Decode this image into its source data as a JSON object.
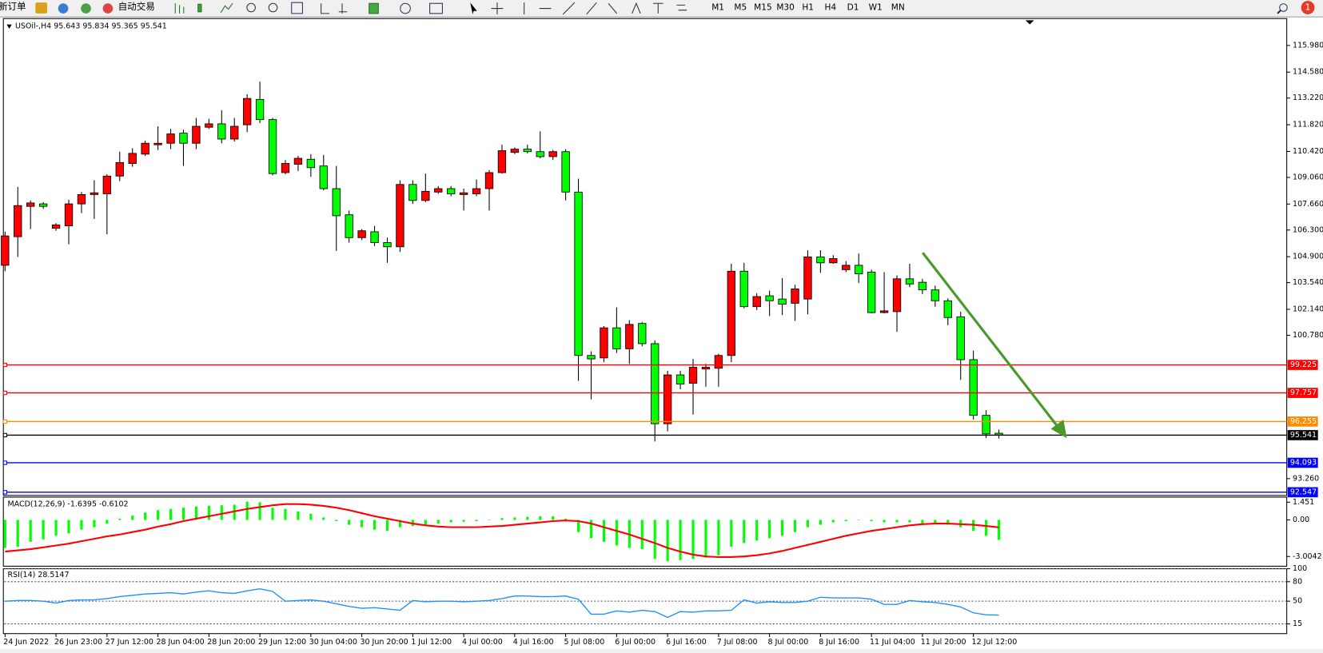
{
  "toolbar": {
    "new_order": "新订单",
    "auto_trading": "自动交易",
    "timeframes": [
      "M1",
      "M5",
      "M15",
      "M30",
      "H1",
      "H4",
      "D1",
      "W1",
      "MN"
    ],
    "alerts": 1
  },
  "chart_data": [
    {
      "type": "candlestick",
      "title": "USOil-,H4",
      "categories": [
        "24 Jun 2022",
        null,
        null,
        null,
        "26 Jun 23:00",
        null,
        null,
        null,
        "27 Jun 12:00",
        null,
        null,
        null,
        "28 Jun 04:00",
        null,
        null,
        null,
        "28 Jun 20:00",
        null,
        null,
        null,
        "29 Jun 12:00",
        null,
        null,
        null,
        "30 Jun 04:00",
        null,
        null,
        null,
        "30 Jun 20:00",
        null,
        null,
        null,
        "1 Jul 12:00",
        null,
        null,
        null,
        "4 Jul 00:00",
        null,
        null,
        null,
        "4 Jul 16:00",
        null,
        null,
        null,
        "5 Jul 08:00",
        null,
        null,
        null,
        "6 Jul 00:00",
        null,
        null,
        null,
        "6 Jul 16:00",
        null,
        null,
        null,
        "7 Jul 08:00",
        null,
        null,
        null,
        "8 Jul 00:00",
        null,
        null,
        null,
        "8 Jul 16:00",
        null,
        null,
        null,
        "11 Jul 04:00",
        null,
        null,
        null,
        "11 Jul 20:00",
        null,
        null,
        null,
        "12 Jul 12:00",
        null,
        null
      ],
      "open": [
        104.45,
        105.95,
        107.54,
        107.67,
        106.39,
        106.52,
        107.67,
        108.16,
        108.2,
        109.13,
        109.79,
        110.28,
        110.77,
        110.85,
        111.38,
        110.85,
        111.69,
        111.87,
        111.07,
        111.82,
        113.15,
        112.09,
        109.31,
        109.75,
        110.01,
        109.66,
        108.47,
        107.1,
        105.9,
        106.21,
        105.64,
        105.42,
        108.69,
        107.85,
        108.29,
        108.47,
        108.16,
        108.2,
        108.47,
        109.31,
        110.37,
        110.54,
        110.41,
        110.15,
        110.41,
        108.29,
        99.72,
        99.59,
        101.17,
        100.07,
        101.4,
        100.34,
        96.14,
        98.7,
        98.26,
        99.01,
        99.05,
        99.72,
        104.14,
        102.28,
        102.85,
        102.68,
        102.46,
        102.68,
        104.89,
        104.58,
        104.22,
        104.45,
        104.09,
        101.97,
        102.02,
        103.74,
        103.56,
        103.16,
        102.59,
        101.75,
        99.5,
        96.58,
        95.643
      ],
      "high": [
        106.21,
        108.56,
        107.85,
        107.76,
        106.66,
        107.89,
        108.29,
        108.91,
        109.22,
        110.41,
        110.59,
        110.99,
        111.74,
        111.6,
        111.56,
        112.18,
        112.13,
        112.58,
        112.18,
        113.42,
        114.08,
        112.18,
        109.97,
        110.19,
        110.28,
        110.24,
        109.66,
        107.32,
        106.35,
        106.52,
        105.9,
        108.91,
        108.91,
        109.26,
        108.6,
        108.6,
        108.47,
        108.95,
        109.44,
        110.77,
        110.63,
        110.77,
        111.47,
        110.5,
        110.54,
        108.99,
        99.94,
        101.26,
        102.24,
        101.57,
        101.48,
        100.51,
        98.92,
        98.92,
        99.54,
        99.28,
        99.81,
        104.53,
        104.58,
        102.99,
        103.12,
        103.78,
        103.43,
        105.24,
        105.24,
        104.98,
        104.67,
        105.07,
        104.22,
        104.09,
        103.92,
        104.53,
        103.74,
        103.38,
        102.72,
        102.02,
        99.98,
        96.85,
        95.834
      ],
      "low": [
        104.14,
        104.89,
        106.35,
        107.41,
        106.26,
        105.55,
        107.19,
        106.88,
        106.08,
        108.86,
        109.62,
        110.19,
        110.5,
        110.54,
        109.66,
        110.54,
        111.6,
        110.85,
        110.94,
        111.43,
        111.91,
        109.17,
        109.22,
        109.4,
        109.09,
        108.38,
        105.2,
        105.64,
        105.77,
        105.46,
        104.58,
        105.15,
        107.67,
        107.76,
        108.2,
        108.07,
        107.32,
        108.07,
        107.32,
        109.26,
        110.28,
        110.32,
        110.06,
        109.97,
        107.85,
        98.39,
        97.42,
        99.37,
        99.85,
        99.28,
        100.2,
        95.21,
        95.74,
        97.95,
        96.62,
        98.08,
        98.08,
        99.37,
        102.19,
        102.1,
        101.79,
        101.84,
        101.53,
        101.88,
        104.05,
        104.53,
        104.09,
        103.52,
        101.93,
        101.93,
        100.96,
        103.3,
        102.94,
        102.28,
        101.31,
        98.44,
        96.36,
        95.39,
        95.365
      ],
      "close": [
        105.99,
        107.58,
        107.72,
        107.54,
        106.57,
        107.67,
        108.16,
        108.25,
        109.13,
        109.84,
        110.32,
        110.85,
        110.85,
        111.34,
        110.85,
        111.74,
        111.87,
        111.07,
        111.74,
        113.2,
        112.09,
        109.26,
        109.79,
        110.06,
        109.57,
        108.47,
        107.05,
        105.9,
        106.26,
        105.64,
        105.42,
        108.69,
        107.85,
        108.33,
        108.47,
        108.2,
        108.25,
        108.47,
        109.31,
        110.46,
        110.54,
        110.41,
        110.15,
        110.41,
        108.29,
        99.72,
        99.54,
        101.17,
        100.07,
        101.35,
        100.34,
        96.14,
        98.7,
        98.22,
        99.1,
        99.1,
        99.72,
        104.14,
        102.28,
        102.81,
        102.59,
        102.41,
        103.21,
        104.89,
        104.58,
        104.8,
        104.45,
        104.0,
        101.97,
        102.06,
        103.74,
        103.47,
        103.16,
        102.59,
        101.71,
        99.5,
        96.58,
        95.61,
        95.541
      ],
      "up_color": "#ff0000",
      "down_color": "#00ff00",
      "ylim": [
        92.38,
        117.39
      ],
      "yticks": [
        {
          "value": 115.98,
          "label": "115.980"
        },
        {
          "value": 114.58,
          "label": "114.580"
        },
        {
          "value": 113.22,
          "label": "113.220"
        },
        {
          "value": 111.82,
          "label": "111.820"
        },
        {
          "value": 110.42,
          "label": "110.420"
        },
        {
          "value": 109.06,
          "label": "109.060"
        },
        {
          "value": 107.66,
          "label": "107.660"
        },
        {
          "value": 106.3,
          "label": "106.300"
        },
        {
          "value": 104.9,
          "label": "104.900"
        },
        {
          "value": 103.54,
          "label": "103.540"
        },
        {
          "value": 102.14,
          "label": "102.140"
        },
        {
          "value": 100.78,
          "label": "100.780"
        },
        {
          "value": 93.26,
          "label": "93.260"
        }
      ],
      "levels": [
        {
          "value": 99.225,
          "color": "#ff0000"
        },
        {
          "value": 97.757,
          "color": "#ff0000"
        },
        {
          "value": 96.255,
          "color": "#ff8c00"
        },
        {
          "value": 94.093,
          "color": "#0000ff"
        },
        {
          "value": 92.547,
          "color": "#0000ff"
        }
      ],
      "bid_color": "#000000"
    },
    {
      "type": "macd",
      "title": "MACD(12,26,9)",
      "series": [
        {
          "kind": "bar",
          "color": "#00ff00",
          "values": [
            -2.3,
            -2.2,
            -1.8,
            -1.6,
            -1.3,
            -1.1,
            -0.8,
            -0.6,
            -0.3,
            0.1,
            0.35,
            0.6,
            0.8,
            0.9,
            1.0,
            1.1,
            1.15,
            1.2,
            1.25,
            1.5,
            1.45,
            1.0,
            0.9,
            0.7,
            0.5,
            0.2,
            -0.1,
            -0.4,
            -0.6,
            -0.8,
            -0.9,
            -0.6,
            -0.5,
            -0.4,
            -0.3,
            -0.2,
            -0.15,
            -0.1,
            0.0,
            0.15,
            0.2,
            0.25,
            0.3,
            0.3,
            0.1,
            -1.0,
            -1.5,
            -1.8,
            -2.1,
            -2.3,
            -2.4,
            -3.2,
            -3.4,
            -3.3,
            -3.2,
            -3.1,
            -2.9,
            -2.2,
            -1.9,
            -1.7,
            -1.5,
            -1.3,
            -1.0,
            -0.6,
            -0.4,
            -0.2,
            -0.1,
            0.0,
            -0.1,
            -0.2,
            -0.2,
            -0.2,
            -0.3,
            -0.3,
            -0.4,
            -0.6,
            -0.9,
            -1.3,
            -1.6395
          ]
        },
        {
          "kind": "line",
          "color": "#ff0000",
          "values": [
            -2.6,
            -2.5,
            -2.4,
            -2.25,
            -2.1,
            -1.95,
            -1.75,
            -1.55,
            -1.35,
            -1.2,
            -1.0,
            -0.8,
            -0.55,
            -0.35,
            -0.1,
            0.1,
            0.3,
            0.5,
            0.7,
            0.9,
            1.05,
            1.2,
            1.3,
            1.3,
            1.25,
            1.15,
            1.0,
            0.8,
            0.55,
            0.3,
            0.1,
            -0.1,
            -0.3,
            -0.45,
            -0.55,
            -0.6,
            -0.6,
            -0.6,
            -0.55,
            -0.5,
            -0.4,
            -0.3,
            -0.2,
            -0.1,
            -0.05,
            -0.1,
            -0.3,
            -0.6,
            -0.9,
            -1.2,
            -1.55,
            -1.9,
            -2.3,
            -2.6,
            -2.85,
            -3.0,
            -3.05,
            -3.05,
            -3.0,
            -2.9,
            -2.75,
            -2.55,
            -2.3,
            -2.05,
            -1.8,
            -1.55,
            -1.3,
            -1.1,
            -0.9,
            -0.75,
            -0.6,
            -0.45,
            -0.35,
            -0.3,
            -0.3,
            -0.35,
            -0.4,
            -0.5,
            -0.6102
          ]
        }
      ],
      "ylim": [
        -3.8,
        1.87
      ],
      "yticks": [
        1.451,
        {
          "value": 0,
          "label": "0.00"
        },
        -3.0042
      ]
    },
    {
      "type": "line",
      "title": "RSI(14)",
      "color": "#1e90ff",
      "values": [
        50,
        51,
        51,
        50,
        47,
        51,
        52,
        52,
        54,
        57,
        59,
        61,
        62,
        63,
        61,
        64,
        66,
        63,
        62,
        66,
        69,
        65,
        50,
        51,
        52,
        50,
        46,
        42,
        39,
        40,
        38,
        36,
        51,
        49,
        50,
        50,
        49,
        50,
        51,
        54,
        58,
        58,
        57,
        57,
        58,
        53,
        30,
        30,
        35,
        33,
        36,
        34,
        25,
        34,
        33,
        35,
        35,
        36,
        52,
        47,
        49,
        48,
        48,
        50,
        56,
        55,
        55,
        55,
        53,
        45,
        45,
        51,
        49,
        48,
        45,
        41,
        32,
        29,
        28.5147
      ],
      "ylim": [
        0,
        100
      ],
      "yticks": [
        15,
        50,
        80,
        100
      ],
      "levels_dotted": true
    }
  ]
}
